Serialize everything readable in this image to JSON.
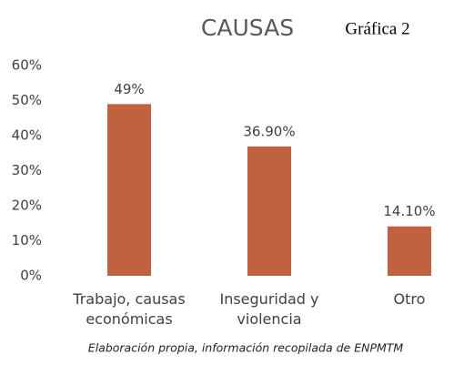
{
  "chart_data": {
    "type": "bar",
    "title": "CAUSAS",
    "subtitle": "Gráfica 2",
    "caption": "Elaboración propia, información recopilada de ENPMTM",
    "categories": [
      "Trabajo, causas económicas",
      "Inseguridad y violencia",
      "Otro"
    ],
    "values": [
      49,
      36.9,
      14.1
    ],
    "value_labels": [
      "49%",
      "36.90%",
      "14.10%"
    ],
    "color": "#c0623f",
    "ylim": [
      0,
      60
    ],
    "yticks": [
      {
        "value": 0,
        "label": "0%"
      },
      {
        "value": 10,
        "label": "10%"
      },
      {
        "value": 20,
        "label": "20%"
      },
      {
        "value": 30,
        "label": "30%"
      },
      {
        "value": 40,
        "label": "40%"
      },
      {
        "value": 50,
        "label": "50%"
      },
      {
        "value": 60,
        "label": "60%"
      }
    ],
    "grid": false
  }
}
